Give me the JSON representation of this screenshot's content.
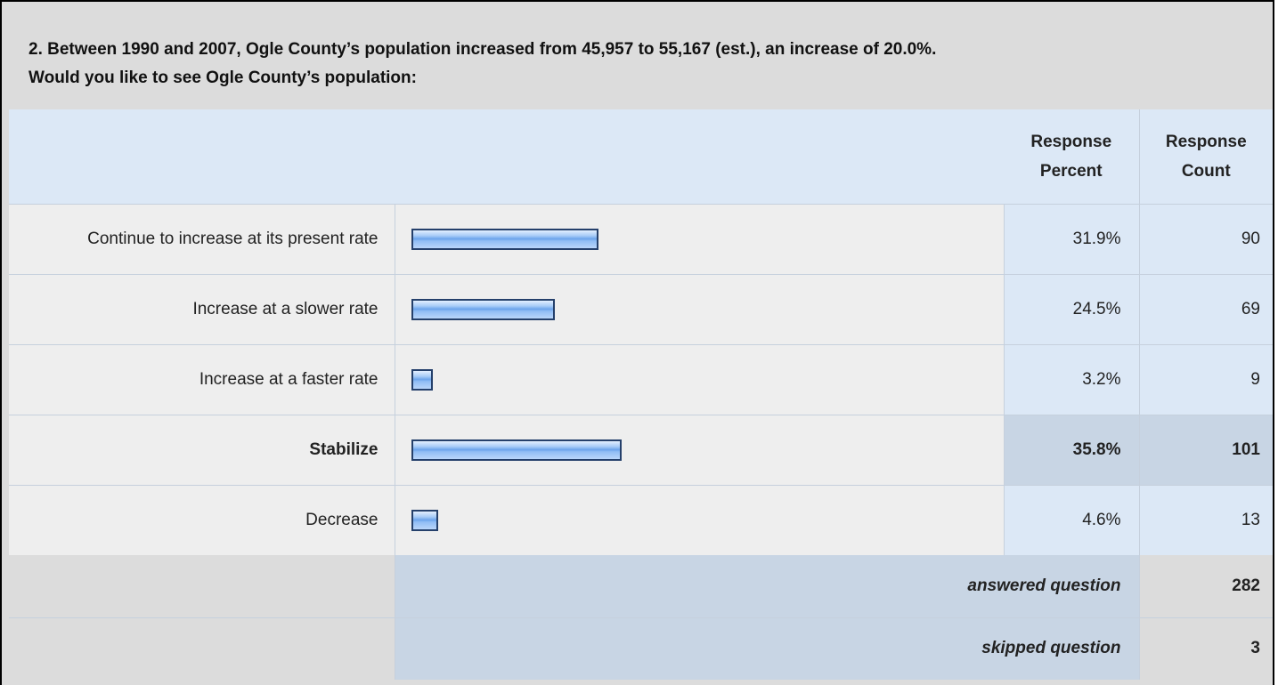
{
  "question": {
    "line1": "2. Between 1990 and 2007, Ogle County’s population increased from 45,957 to 55,167 (est.), an increase of 20.0%.",
    "line2": "Would you like to see Ogle County’s population:"
  },
  "columns": {
    "percent": [
      "Response",
      "Percent"
    ],
    "count": [
      "Response",
      "Count"
    ]
  },
  "summary": {
    "answered_label": "answered question",
    "answered_value": "282",
    "skipped_label": "skipped question",
    "skipped_value": "3"
  },
  "colors": {
    "header_bg": "#dce8f6",
    "row_bg": "#eeeeee",
    "highlight_bg": "#c8d5e4",
    "bar_border": "#25406b"
  },
  "chart_data": {
    "type": "bar",
    "orientation": "horizontal",
    "categories": [
      "Continue to increase at its present rate",
      "Increase at a slower rate",
      "Increase at a faster rate",
      "Stabilize",
      "Decrease"
    ],
    "percent_labels": [
      "31.9%",
      "24.5%",
      "3.2%",
      "35.8%",
      "4.6%"
    ],
    "percents": [
      31.9,
      24.5,
      3.2,
      35.8,
      4.6
    ],
    "counts": [
      "90",
      "69",
      "9",
      "101",
      "13"
    ],
    "highlighted_index": 3
  }
}
